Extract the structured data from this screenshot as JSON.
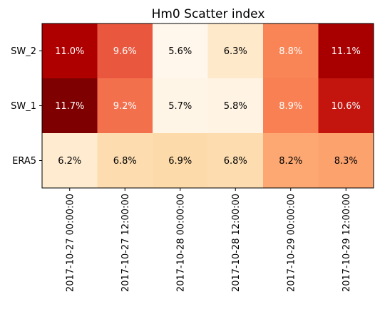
{
  "chart_data": {
    "type": "heatmap",
    "title": "Hm0 Scatter index",
    "xlabel": "",
    "ylabel": "",
    "x_categories": [
      "2017-10-27 00:00:00",
      "2017-10-27 12:00:00",
      "2017-10-28 00:00:00",
      "2017-10-28 12:00:00",
      "2017-10-29 00:00:00",
      "2017-10-29 12:00:00"
    ],
    "y_categories": [
      "SW_2",
      "SW_1",
      "ERA5"
    ],
    "values": [
      [
        11.0,
        9.6,
        5.6,
        6.3,
        8.8,
        11.1
      ],
      [
        11.7,
        9.2,
        5.7,
        5.8,
        8.9,
        10.6
      ],
      [
        6.2,
        6.8,
        6.9,
        6.8,
        8.2,
        8.3
      ]
    ],
    "cell_labels": [
      [
        "11.0%",
        "9.6%",
        "5.6%",
        "6.3%",
        "8.8%",
        "11.1%"
      ],
      [
        "11.7%",
        "9.2%",
        "5.7%",
        "5.8%",
        "8.9%",
        "10.6%"
      ],
      [
        "6.2%",
        "6.8%",
        "6.9%",
        "6.8%",
        "8.2%",
        "8.3%"
      ]
    ],
    "colormap": "OrRd-like",
    "grid": false,
    "legend": "none"
  }
}
